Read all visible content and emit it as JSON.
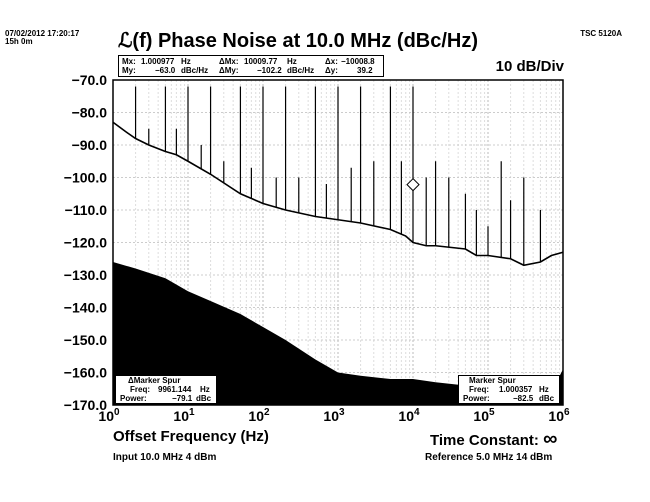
{
  "header": {
    "timestamp": "07/02/2012 17:20:17",
    "elapsed": "15h 0m",
    "instrument": "TSC 5120A"
  },
  "chart_data": {
    "type": "line",
    "title": "ℒ(f) Phase Noise at 10.0 MHz (dBc/Hz)",
    "scale_label": "10 dB/Div",
    "xlabel": "Offset Frequency (Hz)",
    "x_scale": "log",
    "xlim": [
      1,
      1000000
    ],
    "ylim": [
      -170,
      -70
    ],
    "x_ticks": [
      {
        "value": 1,
        "mantissa": "10",
        "exp": "0"
      },
      {
        "value": 10,
        "mantissa": "10",
        "exp": "1"
      },
      {
        "value": 100,
        "mantissa": "10",
        "exp": "2"
      },
      {
        "value": 1000,
        "mantissa": "10",
        "exp": "3"
      },
      {
        "value": 10000,
        "mantissa": "10",
        "exp": "4"
      },
      {
        "value": 100000,
        "mantissa": "10",
        "exp": "5"
      },
      {
        "value": 1000000,
        "mantissa": "10",
        "exp": "6"
      }
    ],
    "y_ticks": [
      {
        "value": -70,
        "label": "−70.0"
      },
      {
        "value": -80,
        "label": "−80.0"
      },
      {
        "value": -90,
        "label": "−90.0"
      },
      {
        "value": -100,
        "label": "−100.0"
      },
      {
        "value": -110,
        "label": "−110.0"
      },
      {
        "value": -120,
        "label": "−120.0"
      },
      {
        "value": -130,
        "label": "−130.0"
      },
      {
        "value": -140,
        "label": "−140.0"
      },
      {
        "value": -150,
        "label": "−150.0"
      },
      {
        "value": -160,
        "label": "−160.0"
      },
      {
        "value": -170,
        "label": "−170.0"
      }
    ],
    "grid": true,
    "phase_noise": {
      "x": [
        1,
        1.5,
        2,
        3,
        5,
        7,
        10,
        20,
        50,
        100,
        200,
        500,
        1000,
        2000,
        5000,
        8000,
        10000,
        15000,
        20000,
        50000,
        70000,
        100000,
        200000,
        300000,
        500000,
        700000,
        1000000
      ],
      "y": [
        -83,
        -86,
        -88,
        -90,
        -92,
        -93,
        -95,
        -99,
        -105,
        -108,
        -110,
        -112,
        -113,
        -114,
        -116,
        -118,
        -120,
        -121,
        -121,
        -122,
        -124,
        -124,
        -125,
        -127,
        -126,
        -124,
        -123
      ]
    },
    "spurs": {
      "x": [
        2,
        3,
        5,
        7,
        10,
        15,
        20,
        30,
        50,
        70,
        100,
        150,
        200,
        300,
        500,
        700,
        1000,
        1500,
        2000,
        3000,
        5000,
        7000,
        10000,
        15000,
        20000,
        30000,
        50000,
        70000,
        100000,
        150000,
        200000,
        300000,
        500000
      ],
      "y": [
        -72,
        -85,
        -72,
        -85,
        -72,
        -90,
        -72,
        -95,
        -72,
        -97,
        -72,
        -100,
        -72,
        -100,
        -72,
        -102,
        -72,
        -97,
        -72,
        -95,
        -72,
        -95,
        -72,
        -100,
        -95,
        -100,
        -105,
        -110,
        -115,
        -95,
        -107,
        -100,
        -110
      ]
    },
    "floor": {
      "x": [
        1,
        2,
        5,
        10,
        20,
        50,
        100,
        200,
        500,
        1000,
        2000,
        5000,
        10000,
        20000,
        50000,
        100000,
        200000,
        500000,
        700000,
        1000000
      ],
      "y": [
        -126,
        -128,
        -131,
        -135,
        -138,
        -142,
        -146,
        -150,
        -156,
        -160,
        -161,
        -162,
        -162,
        -163,
        -164,
        -165,
        -166,
        -168,
        -166,
        -159
      ]
    },
    "marker": {
      "x": 10008.8,
      "y": -102.2
    }
  },
  "readout": {
    "mx_label": "Mx:",
    "mx_value": "1.000977",
    "mx_unit": "Hz",
    "my_label": "My:",
    "my_value": "−63.0",
    "my_unit": "dBc/Hz",
    "dmx_label": "ΔMx:",
    "dmx_value": "10009.77",
    "dmx_unit": "Hz",
    "dmy_label": "ΔMy:",
    "dmy_value": "−102.2",
    "dmy_unit": "dBc/Hz",
    "dx_label": "Δx:",
    "dx_value": "−10008.8",
    "dy_label": "Δy:",
    "dy_value": "39.2"
  },
  "delta_spur": {
    "title": "ΔMarker Spur",
    "freq_label": "Freq:",
    "freq_value": "9961.144",
    "freq_unit": "Hz",
    "power_label": "Power:",
    "power_value": "−79.1",
    "power_unit": "dBc"
  },
  "marker_spur": {
    "title": "Marker Spur",
    "freq_label": "Freq:",
    "freq_value": "1.000357",
    "freq_unit": "Hz",
    "power_label": "Power:",
    "power_value": "−82.5",
    "power_unit": "dBc"
  },
  "footer": {
    "time_constant_label": "Time Constant:",
    "time_constant_value": "∞",
    "input": "Input 10.0 MHz 4 dBm",
    "reference": "Reference 5.0 MHz 14 dBm"
  }
}
